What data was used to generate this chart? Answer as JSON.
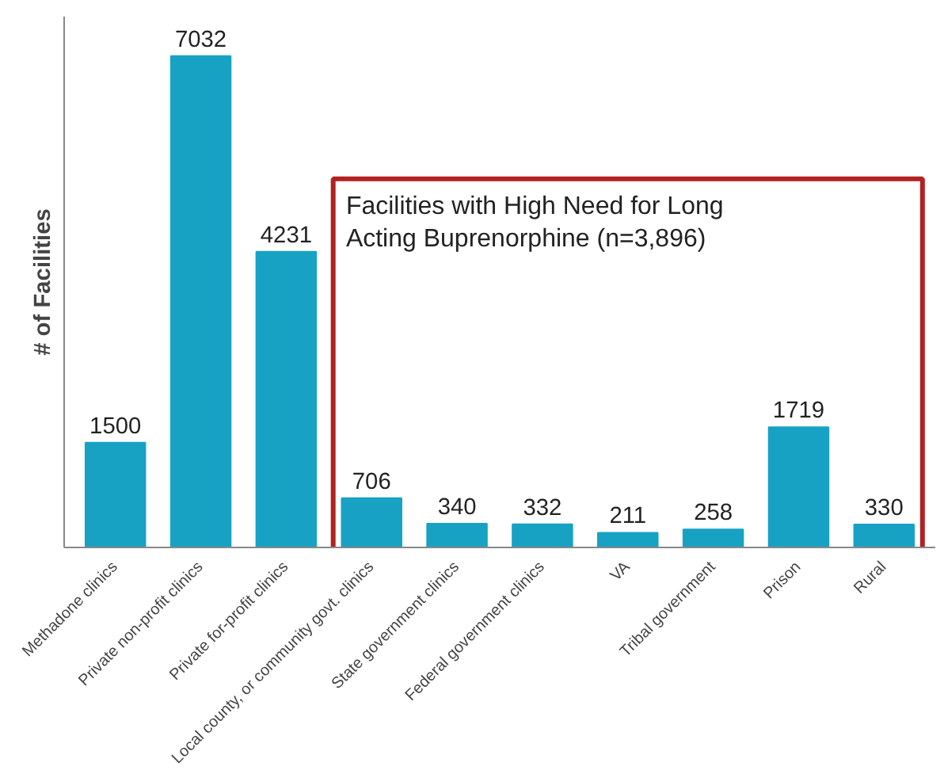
{
  "chart_data": {
    "type": "bar",
    "ylabel": "# of Facilities",
    "categories": [
      "Methadone clinics",
      "Private non-profit clinics",
      "Private for-profit clinics",
      "Local county, or community govt. clinics",
      "State government clinics",
      "Federal government clinics",
      "VA",
      "Tribal government",
      "Prison",
      "Rural"
    ],
    "values": [
      1500,
      7032,
      4231,
      706,
      340,
      332,
      211,
      258,
      1719,
      330
    ],
    "color": "#17a2c4",
    "data_labels": true,
    "grid": false,
    "annotations": [
      "Facilities with High Need for Long\nActing Buprenorphine (n=3,896)"
    ]
  }
}
